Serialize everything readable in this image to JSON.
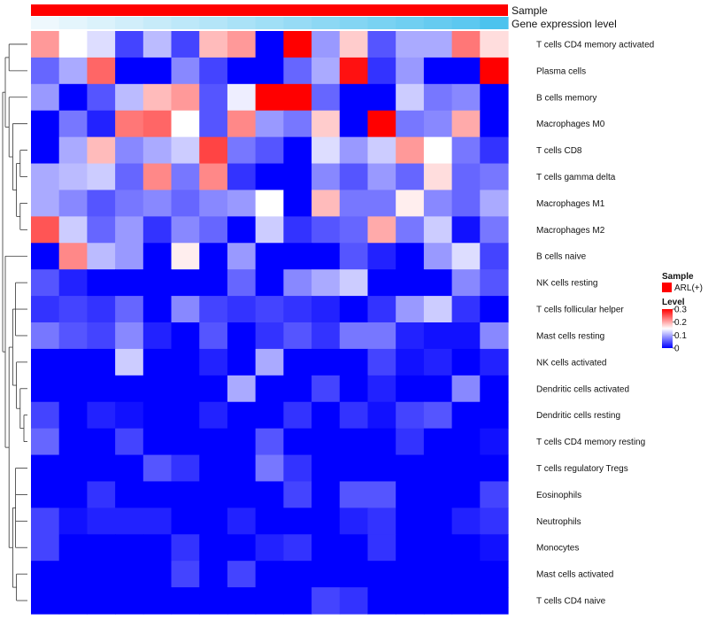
{
  "chart_data": {
    "type": "heatmap",
    "annotations": [
      {
        "name": "Sample",
        "color": "#ff0000"
      },
      {
        "name": "Gene expression level",
        "gradient": [
          "#eef8fd",
          "#4cc3ee"
        ]
      }
    ],
    "rows": [
      "T cells CD4 memory activated",
      "Plasma cells",
      "B cells memory",
      "Macrophages M0",
      "T cells CD8",
      "T cells gamma delta",
      "Macrophages M1",
      "Macrophages M2",
      "B cells naive",
      "NK cells resting",
      "T cells follicular helper",
      "Mast cells resting",
      "NK cells activated",
      "Dendritic cells activated",
      "Dendritic cells resting",
      "T cells CD4 memory resting",
      "T cells regulatory  Tregs",
      "Eosinophils",
      "Neutrophils",
      "Monocytes",
      "Mast cells activated",
      "T cells CD4 naive"
    ],
    "values": [
      [
        0.21,
        0.15,
        0.13,
        0.04,
        0.11,
        0.04,
        0.19,
        0.21,
        0.0,
        0.3,
        0.09,
        0.18,
        0.05,
        0.1,
        0.1,
        0.23,
        0.17
      ],
      [
        0.06,
        0.1,
        0.24,
        0.0,
        0.0,
        0.08,
        0.04,
        0.0,
        0.0,
        0.06,
        0.1,
        0.29,
        0.03,
        0.09,
        0.0,
        0.0,
        0.3
      ],
      [
        0.09,
        0.0,
        0.05,
        0.11,
        0.19,
        0.21,
        0.05,
        0.14,
        0.3,
        0.3,
        0.06,
        0.0,
        0.0,
        0.12,
        0.07,
        0.08,
        0.0
      ],
      [
        0.0,
        0.07,
        0.02,
        0.23,
        0.24,
        0.15,
        0.05,
        0.22,
        0.09,
        0.07,
        0.18,
        0.0,
        0.3,
        0.07,
        0.08,
        0.2,
        0.0
      ],
      [
        0.0,
        0.1,
        0.19,
        0.08,
        0.1,
        0.12,
        0.26,
        0.07,
        0.05,
        0.0,
        0.13,
        0.09,
        0.12,
        0.21,
        0.15,
        0.07,
        0.03
      ],
      [
        0.1,
        0.11,
        0.12,
        0.06,
        0.22,
        0.07,
        0.22,
        0.03,
        0.0,
        0.0,
        0.08,
        0.05,
        0.09,
        0.06,
        0.17,
        0.06,
        0.07
      ],
      [
        0.1,
        0.08,
        0.05,
        0.07,
        0.08,
        0.06,
        0.08,
        0.09,
        0.15,
        0.0,
        0.19,
        0.07,
        0.07,
        0.16,
        0.08,
        0.06,
        0.1
      ],
      [
        0.25,
        0.12,
        0.06,
        0.09,
        0.03,
        0.08,
        0.06,
        0.0,
        0.12,
        0.03,
        0.05,
        0.06,
        0.2,
        0.07,
        0.12,
        0.01,
        0.07
      ],
      [
        0.0,
        0.22,
        0.11,
        0.09,
        0.0,
        0.16,
        0.0,
        0.09,
        0.0,
        0.0,
        0.0,
        0.05,
        0.02,
        0.0,
        0.09,
        0.13,
        0.04
      ],
      [
        0.05,
        0.02,
        0.0,
        0.0,
        0.0,
        0.0,
        0.0,
        0.06,
        0.0,
        0.08,
        0.1,
        0.12,
        0.0,
        0.0,
        0.0,
        0.08,
        0.05
      ],
      [
        0.03,
        0.04,
        0.03,
        0.06,
        0.0,
        0.08,
        0.04,
        0.03,
        0.04,
        0.03,
        0.02,
        0.0,
        0.03,
        0.09,
        0.12,
        0.03,
        0.0
      ],
      [
        0.07,
        0.05,
        0.04,
        0.08,
        0.02,
        0.0,
        0.05,
        0.0,
        0.03,
        0.05,
        0.03,
        0.07,
        0.07,
        0.02,
        0.01,
        0.01,
        0.08
      ],
      [
        0.0,
        0.0,
        0.0,
        0.12,
        0.0,
        0.0,
        0.02,
        0.0,
        0.1,
        0.0,
        0.0,
        0.0,
        0.04,
        0.01,
        0.02,
        0.0,
        0.02
      ],
      [
        0.0,
        0.0,
        0.0,
        0.0,
        0.0,
        0.0,
        0.0,
        0.1,
        0.0,
        0.0,
        0.04,
        0.0,
        0.02,
        0.0,
        0.0,
        0.08,
        0.0
      ],
      [
        0.04,
        0.0,
        0.02,
        0.01,
        0.0,
        0.0,
        0.02,
        0.0,
        0.0,
        0.03,
        0.0,
        0.03,
        0.01,
        0.04,
        0.05,
        0.0,
        0.0
      ],
      [
        0.06,
        0.0,
        0.0,
        0.04,
        0.0,
        0.0,
        0.0,
        0.0,
        0.05,
        0.0,
        0.0,
        0.0,
        0.0,
        0.03,
        0.0,
        0.0,
        0.01
      ],
      [
        0.0,
        0.0,
        0.0,
        0.0,
        0.05,
        0.03,
        0.0,
        0.0,
        0.07,
        0.03,
        0.0,
        0.0,
        0.0,
        0.0,
        0.0,
        0.0,
        0.0
      ],
      [
        0.0,
        0.0,
        0.03,
        0.0,
        0.0,
        0.0,
        0.0,
        0.0,
        0.0,
        0.04,
        0.0,
        0.05,
        0.05,
        0.0,
        0.0,
        0.0,
        0.04
      ],
      [
        0.04,
        0.01,
        0.02,
        0.02,
        0.02,
        0.0,
        0.0,
        0.02,
        0.0,
        0.0,
        0.0,
        0.02,
        0.03,
        0.0,
        0.0,
        0.02,
        0.03
      ],
      [
        0.04,
        0.0,
        0.0,
        0.0,
        0.0,
        0.03,
        0.0,
        0.0,
        0.02,
        0.03,
        0.0,
        0.0,
        0.03,
        0.0,
        0.0,
        0.0,
        0.01
      ],
      [
        0.0,
        0.0,
        0.0,
        0.0,
        0.0,
        0.04,
        0.0,
        0.04,
        0.0,
        0.0,
        0.0,
        0.0,
        0.0,
        0.0,
        0.0,
        0.0,
        0.0
      ],
      [
        0.0,
        0.0,
        0.0,
        0.0,
        0.0,
        0.0,
        0.0,
        0.0,
        0.0,
        0.0,
        0.04,
        0.03,
        0.0,
        0.0,
        0.0,
        0.0,
        0.0
      ]
    ],
    "gene_expression_level": [
      0.0,
      0.06,
      0.12,
      0.18,
      0.24,
      0.3,
      0.36,
      0.42,
      0.48,
      0.54,
      0.6,
      0.66,
      0.72,
      0.78,
      0.84,
      0.9,
      1.0
    ],
    "color_scale": {
      "min": 0,
      "mid": 0.15,
      "max": 0.3,
      "colors": [
        "#0000ff",
        "#ffffff",
        "#ff0000"
      ]
    },
    "legend": {
      "placement": "right",
      "sample_title": "Sample",
      "sample_entry": "ARL(+)",
      "sample_color": "#ff0000",
      "level_title": "Level",
      "level_ticks": [
        {
          "value": 0.3,
          "label": "0.3"
        },
        {
          "value": 0.2,
          "label": "0.2"
        },
        {
          "value": 0.1,
          "label": "0.1"
        },
        {
          "value": 0,
          "label": "0"
        }
      ]
    },
    "dendrogram": "rows"
  }
}
